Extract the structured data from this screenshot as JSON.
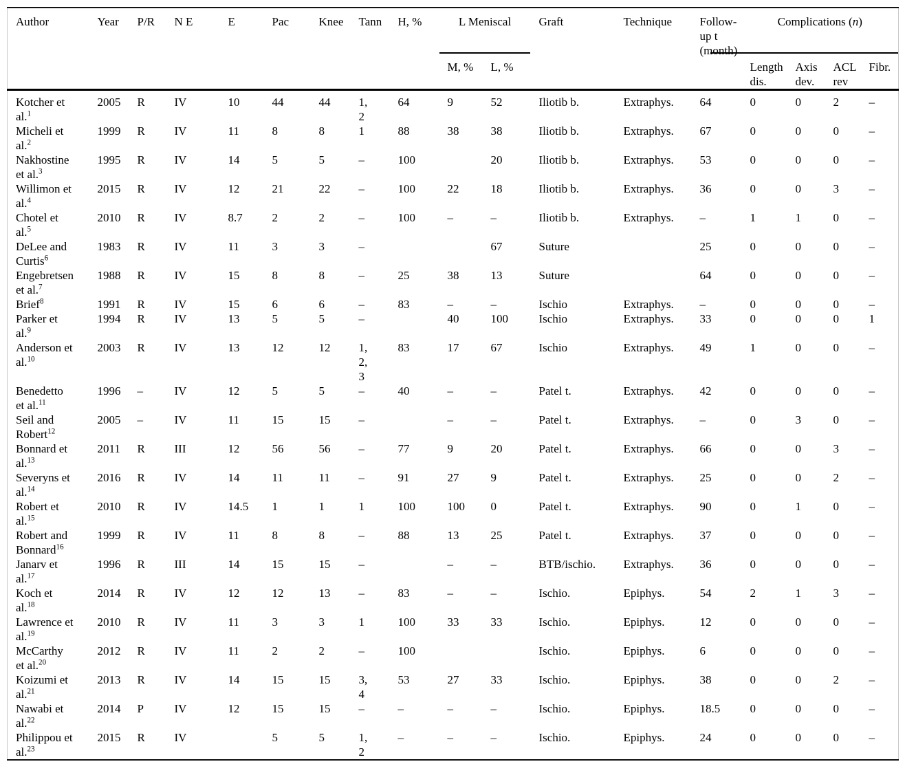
{
  "table": {
    "header": {
      "author": "Author",
      "year": "Year",
      "pr": "P/R",
      "ne": "N E",
      "e": "E",
      "pac": "Pac",
      "knee": "Knee",
      "tann": "Tann",
      "h": "H, %",
      "l_meniscal": "L Meniscal",
      "m": "M, %",
      "l": "L, %",
      "graft": "Graft",
      "technique": "Technique",
      "followup": "Follow-up t (month)",
      "complications_pre": "Complications (",
      "complications_n": "n",
      "complications_post": ")",
      "length_dis": "Length dis.",
      "axis_dev": "Axis dev.",
      "acl_rev": "ACL rev",
      "fibr": "Fibr."
    },
    "rows": [
      {
        "author": "Kotcher et\nal.",
        "ref": "1",
        "cells": [
          "2005",
          "R",
          "IV",
          "10",
          "44",
          "44",
          "1,\n2",
          "64",
          "9",
          "52",
          "Iliotib b.",
          "Extraphys.",
          "64",
          "0",
          "0",
          "2",
          "–"
        ]
      },
      {
        "author": "Micheli et\nal.",
        "ref": "2",
        "cells": [
          "1999",
          "R",
          "IV",
          "11",
          "8",
          "8",
          "1",
          "88",
          "38",
          "38",
          "Iliotib b.",
          "Extraphys.",
          "67",
          "0",
          "0",
          "0",
          "–"
        ]
      },
      {
        "author": "Nakhostine\net al.",
        "ref": "3",
        "cells": [
          "1995",
          "R",
          "IV",
          "14",
          "5",
          "5",
          "–",
          "100",
          "",
          "20",
          "Iliotib b.",
          "Extraphys.",
          "53",
          "0",
          "0",
          "0",
          "–"
        ]
      },
      {
        "author": "Willimon et\nal.",
        "ref": "4",
        "cells": [
          "2015",
          "R",
          "IV",
          "12",
          "21",
          "22",
          "–",
          "100",
          "22",
          "18",
          "Iliotib b.",
          "Extraphys.",
          "36",
          "0",
          "0",
          "3",
          "–"
        ]
      },
      {
        "author": "Chotel et\nal.",
        "ref": "5",
        "cells": [
          "2010",
          "R",
          "IV",
          "8.7",
          "2",
          "2",
          "–",
          "100",
          "–",
          "–",
          "Iliotib b.",
          "Extraphys.",
          "–",
          "1",
          "1",
          "0",
          "–"
        ]
      },
      {
        "author": "DeLee and\nCurtis",
        "ref": "6",
        "cells": [
          "1983",
          "R",
          "IV",
          "11",
          "3",
          "3",
          "–",
          "",
          "",
          "67",
          "Suture",
          "",
          "25",
          "0",
          "0",
          "0",
          "–"
        ]
      },
      {
        "author": "Engebretsen\net al.",
        "ref": "7",
        "cells": [
          "1988",
          "R",
          "IV",
          "15",
          "8",
          "8",
          "–",
          "25",
          "38",
          "13",
          "Suture",
          "",
          "64",
          "0",
          "0",
          "0",
          "–"
        ]
      },
      {
        "author": "Brief",
        "ref": "8",
        "cells": [
          "1991",
          "R",
          "IV",
          "15",
          "6",
          "6",
          "–",
          "83",
          "–",
          "–",
          "Ischio",
          "Extraphys.",
          "–",
          "0",
          "0",
          "0",
          "–"
        ]
      },
      {
        "author": "Parker et\nal.",
        "ref": "9",
        "cells": [
          "1994",
          "R",
          "IV",
          "13",
          "5",
          "5",
          "–",
          "",
          "40",
          "100",
          "Ischio",
          "Extraphys.",
          "33",
          "0",
          "0",
          "0",
          "1"
        ]
      },
      {
        "author": "Anderson et\nal.",
        "ref": "10",
        "cells": [
          "2003",
          "R",
          "IV",
          "13",
          "12",
          "12",
          "1,\n2,\n3",
          "83",
          "17",
          "67",
          "Ischio",
          "Extraphys.",
          "49",
          "1",
          "0",
          "0",
          "–"
        ]
      },
      {
        "author": "Benedetto\net al.",
        "ref": "11",
        "cells": [
          "1996",
          "–",
          "IV",
          "12",
          "5",
          "5",
          "–",
          "40",
          "–",
          "–",
          "Patel t.",
          "Extraphys.",
          "42",
          "0",
          "0",
          "0",
          "–"
        ]
      },
      {
        "author": "Seil and\nRobert",
        "ref": "12",
        "cells": [
          "2005",
          "–",
          "IV",
          "11",
          "15",
          "15",
          "–",
          "",
          "–",
          "–",
          "Patel t.",
          "Extraphys.",
          "–",
          "0",
          "3",
          "0",
          "–"
        ]
      },
      {
        "author": "Bonnard et\nal.",
        "ref": "13",
        "cells": [
          "2011",
          "R",
          "III",
          "12",
          "56",
          "56",
          "–",
          "77",
          "9",
          "20",
          "Patel t.",
          "Extraphys.",
          "66",
          "0",
          "0",
          "3",
          "–"
        ]
      },
      {
        "author": "Severyns et\nal.",
        "ref": "14",
        "cells": [
          "2016",
          "R",
          "IV",
          "14",
          "11",
          "11",
          "–",
          "91",
          "27",
          "9",
          "Patel t.",
          "Extraphys.",
          "25",
          "0",
          "0",
          "2",
          "–"
        ]
      },
      {
        "author": "Robert et\nal.",
        "ref": "15",
        "cells": [
          "2010",
          "R",
          "IV",
          "14.5",
          "1",
          "1",
          "1",
          "100",
          "100",
          "0",
          "Patel t.",
          "Extraphys.",
          "90",
          "0",
          "1",
          "0",
          "–"
        ]
      },
      {
        "author": "Robert and\nBonnard",
        "ref": "16",
        "cells": [
          "1999",
          "R",
          "IV",
          "11",
          "8",
          "8",
          "–",
          "88",
          "13",
          "25",
          "Patel t.",
          "Extraphys.",
          "37",
          "0",
          "0",
          "0",
          "–"
        ]
      },
      {
        "author": "Janarv et\nal.",
        "ref": "17",
        "cells": [
          "1996",
          "R",
          "III",
          "14",
          "15",
          "15",
          "–",
          "",
          "–",
          "–",
          "BTB/ischio.",
          "Extraphys.",
          "36",
          "0",
          "0",
          "0",
          "–"
        ]
      },
      {
        "author": "Koch et\nal.",
        "ref": "18",
        "cells": [
          "2014",
          "R",
          "IV",
          "12",
          "12",
          "13",
          "–",
          "83",
          "–",
          "–",
          "Ischio.",
          "Epiphys.",
          "54",
          "2",
          "1",
          "3",
          "–"
        ]
      },
      {
        "author": "Lawrence et\nal.",
        "ref": "19",
        "cells": [
          "2010",
          "R",
          "IV",
          "11",
          "3",
          "3",
          "1",
          "100",
          "33",
          "33",
          "Ischio.",
          "Epiphys.",
          "12",
          "0",
          "0",
          "0",
          "–"
        ]
      },
      {
        "author": "McCarthy\net al.",
        "ref": "20",
        "cells": [
          "2012",
          "R",
          "IV",
          "11",
          "2",
          "2",
          "–",
          "100",
          "",
          "",
          "Ischio.",
          "Epiphys.",
          "6",
          "0",
          "0",
          "0",
          "–"
        ]
      },
      {
        "author": "Koizumi et\nal.",
        "ref": "21",
        "cells": [
          "2013",
          "R",
          "IV",
          "14",
          "15",
          "15",
          "3,\n4",
          "53",
          "27",
          "33",
          "Ischio.",
          "Epiphys.",
          "38",
          "0",
          "0",
          "2",
          "–"
        ]
      },
      {
        "author": "Nawabi et\nal.",
        "ref": "22",
        "cells": [
          "2014",
          "P",
          "IV",
          "12",
          "15",
          "15",
          "–",
          "–",
          "–",
          "–",
          "Ischio.",
          "Epiphys.",
          "18.5",
          "0",
          "0",
          "0",
          "–"
        ]
      },
      {
        "author": "Philippou et\nal.",
        "ref": "23",
        "cells": [
          "2015",
          "R",
          "IV",
          "",
          "5",
          "5",
          "1,\n2",
          "–",
          "–",
          "–",
          "Ischio.",
          "Epiphys.",
          "24",
          "0",
          "0",
          "0",
          "–"
        ]
      }
    ]
  }
}
